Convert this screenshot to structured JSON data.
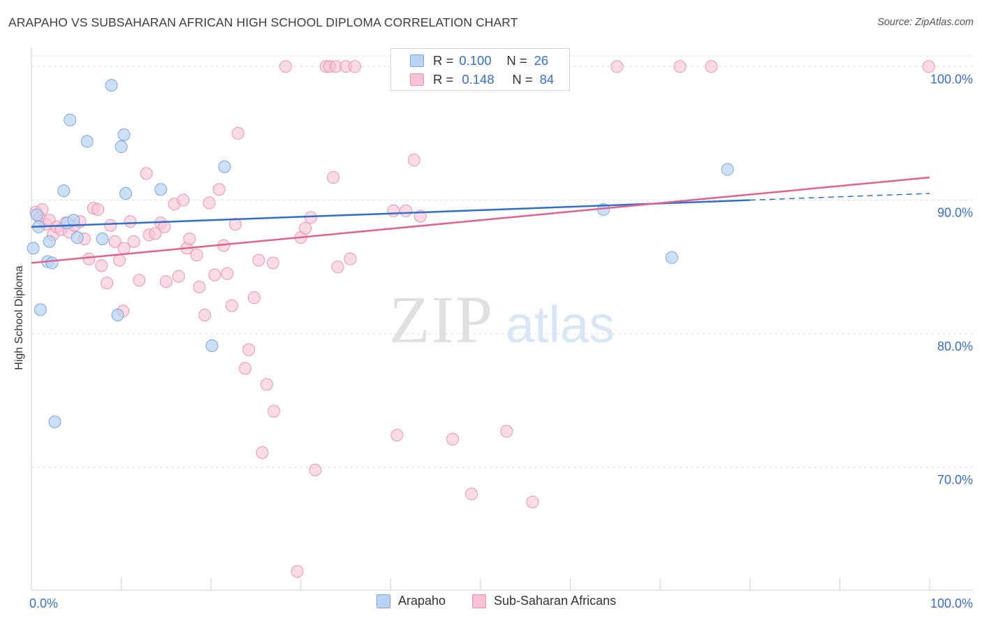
{
  "header": {
    "title": "ARAPAHO VS SUBSAHARAN AFRICAN HIGH SCHOOL DIPLOMA CORRELATION CHART",
    "source": "Source: ZipAtlas.com"
  },
  "watermark": {
    "zip": "ZIP",
    "atlas": "atlas"
  },
  "legend_stats": [
    {
      "r_label": "R =",
      "r_value": "0.100",
      "n_label": "N =",
      "n_value": "26"
    },
    {
      "r_label": "R =",
      "r_value": "0.148",
      "n_label": "N =",
      "n_value": "84"
    }
  ],
  "colors": {
    "arapaho_fill": "#b9d3f4",
    "arapaho_stroke": "#7aa6e0",
    "arapaho_line": "#2f6fcb",
    "subsaharan_fill": "#f8c3d3",
    "subsaharan_stroke": "#eb94b1",
    "subsaharan_line": "#e0608e",
    "axis_text": "#3a6fc4",
    "grid": "#dddddd"
  },
  "chart_data": {
    "type": "scatter",
    "title": "ARAPAHO VS SUBSAHARAN AFRICAN HIGH SCHOOL DIPLOMA CORRELATION CHART",
    "ylabel": "High School Diploma",
    "xlabel": "",
    "xlim": [
      0,
      100
    ],
    "ylim": [
      60.8,
      100.8
    ],
    "x_tick_labels": [
      "0.0%",
      "100.0%"
    ],
    "y_ticks": [
      70,
      80,
      90,
      100
    ],
    "y_tick_labels": [
      "70.0%",
      "80.0%",
      "90.0%",
      "100.0%"
    ],
    "grid": "horizontal dashed",
    "legend_placement": "bottom",
    "series": [
      {
        "name": "Arapaho",
        "r": 0.1,
        "n": 26,
        "trend": {
          "x": [
            0,
            80
          ],
          "y": [
            88.0,
            90.0
          ],
          "dashed_to_x": 100,
          "dashed_to_y": 90.5
        },
        "points": [
          [
            0.2,
            86.4
          ],
          [
            0.8,
            88.0
          ],
          [
            1.0,
            81.8
          ],
          [
            1.8,
            85.4
          ],
          [
            2.0,
            86.9
          ],
          [
            2.3,
            85.3
          ],
          [
            2.6,
            73.4
          ],
          [
            3.6,
            90.7
          ],
          [
            4.0,
            88.3
          ],
          [
            4.3,
            96.0
          ],
          [
            4.7,
            88.5
          ],
          [
            5.1,
            87.2
          ],
          [
            6.2,
            94.4
          ],
          [
            7.9,
            87.1
          ],
          [
            8.9,
            98.6
          ],
          [
            9.6,
            81.4
          ],
          [
            10.0,
            94.0
          ],
          [
            10.3,
            94.9
          ],
          [
            10.5,
            90.5
          ],
          [
            14.4,
            90.8
          ],
          [
            20.1,
            79.1
          ],
          [
            21.5,
            92.5
          ],
          [
            63.7,
            89.3
          ],
          [
            71.3,
            85.7
          ],
          [
            77.5,
            92.3
          ],
          [
            0.6,
            88.9
          ]
        ]
      },
      {
        "name": "Sub-Saharan Africans",
        "r": 0.148,
        "n": 84,
        "trend": {
          "x": [
            0,
            100
          ],
          "y": [
            85.3,
            91.7
          ]
        },
        "points": [
          [
            0.5,
            89.1
          ],
          [
            0.9,
            88.7
          ],
          [
            1.2,
            89.3
          ],
          [
            1.6,
            88.2
          ],
          [
            2.0,
            88.5
          ],
          [
            2.4,
            87.4
          ],
          [
            2.8,
            88.0
          ],
          [
            3.3,
            87.8
          ],
          [
            3.8,
            88.3
          ],
          [
            4.2,
            87.6
          ],
          [
            4.8,
            88.1
          ],
          [
            5.4,
            88.4
          ],
          [
            5.9,
            87.1
          ],
          [
            6.4,
            85.6
          ],
          [
            6.9,
            89.4
          ],
          [
            7.4,
            89.3
          ],
          [
            7.8,
            85.1
          ],
          [
            8.4,
            83.8
          ],
          [
            8.8,
            88.1
          ],
          [
            9.3,
            86.9
          ],
          [
            9.8,
            85.5
          ],
          [
            10.3,
            86.4
          ],
          [
            10.2,
            81.7
          ],
          [
            11.0,
            88.4
          ],
          [
            11.4,
            86.9
          ],
          [
            12.0,
            84.0
          ],
          [
            12.8,
            92.0
          ],
          [
            13.1,
            87.4
          ],
          [
            13.8,
            87.5
          ],
          [
            14.4,
            88.3
          ],
          [
            14.8,
            88.0
          ],
          [
            15.0,
            83.9
          ],
          [
            15.9,
            89.7
          ],
          [
            16.4,
            84.3
          ],
          [
            16.9,
            90.0
          ],
          [
            17.3,
            86.4
          ],
          [
            17.6,
            87.1
          ],
          [
            18.4,
            85.9
          ],
          [
            18.7,
            83.5
          ],
          [
            19.3,
            81.4
          ],
          [
            19.8,
            89.8
          ],
          [
            20.4,
            84.4
          ],
          [
            20.9,
            90.8
          ],
          [
            21.4,
            86.6
          ],
          [
            21.8,
            84.5
          ],
          [
            22.3,
            82.1
          ],
          [
            22.7,
            88.2
          ],
          [
            23.0,
            95.0
          ],
          [
            23.8,
            77.4
          ],
          [
            24.2,
            78.8
          ],
          [
            24.8,
            82.7
          ],
          [
            25.3,
            85.5
          ],
          [
            25.7,
            71.1
          ],
          [
            26.2,
            76.2
          ],
          [
            26.9,
            85.3
          ],
          [
            27.0,
            74.2
          ],
          [
            28.3,
            100.0
          ],
          [
            29.6,
            62.2
          ],
          [
            30.0,
            87.2
          ],
          [
            30.5,
            87.9
          ],
          [
            31.1,
            88.7
          ],
          [
            31.6,
            69.8
          ],
          [
            32.8,
            100.0
          ],
          [
            33.2,
            100.0
          ],
          [
            33.6,
            91.7
          ],
          [
            33.9,
            100.0
          ],
          [
            34.1,
            85.0
          ],
          [
            35.0,
            100.0
          ],
          [
            35.5,
            85.6
          ],
          [
            36.0,
            100.0
          ],
          [
            40.3,
            89.2
          ],
          [
            40.7,
            72.4
          ],
          [
            41.7,
            89.2
          ],
          [
            42.6,
            93.0
          ],
          [
            43.3,
            88.8
          ],
          [
            46.9,
            72.1
          ],
          [
            49.0,
            68.0
          ],
          [
            52.0,
            100.0
          ],
          [
            52.9,
            72.7
          ],
          [
            55.8,
            67.4
          ],
          [
            65.2,
            100.0
          ],
          [
            72.2,
            100.0
          ],
          [
            75.7,
            100.0
          ],
          [
            99.9,
            100.0
          ]
        ]
      }
    ]
  }
}
